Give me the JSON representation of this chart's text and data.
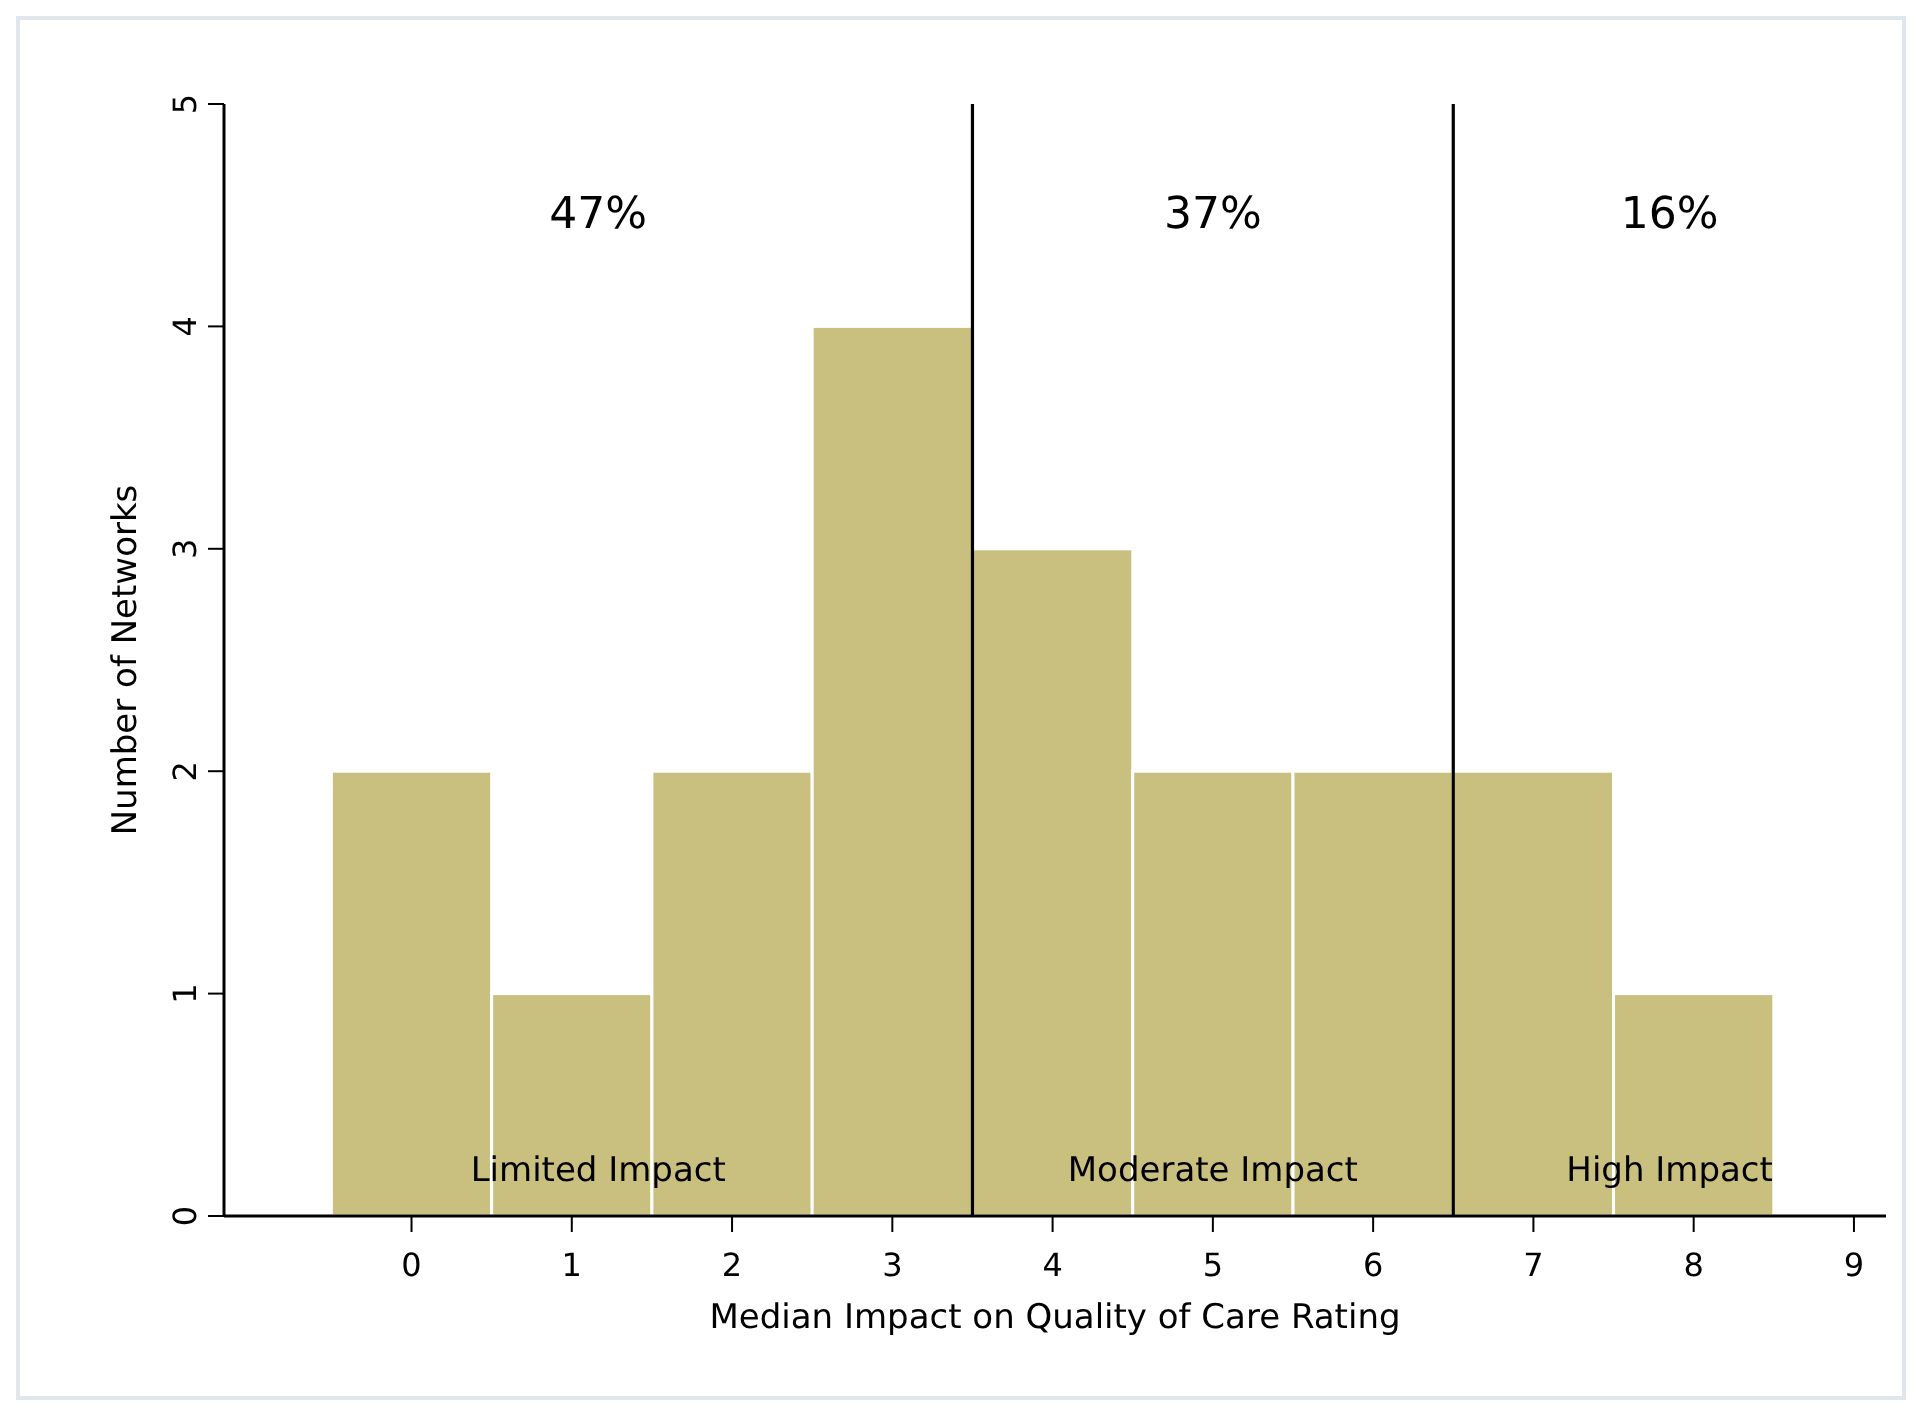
{
  "chart_data": {
    "type": "histogram",
    "xlabel": "Median Impact on Quality of Care Rating",
    "ylabel": "Number of Networks",
    "bins": [
      -0.5,
      0.5,
      1.5,
      2.5,
      3.5,
      4.5,
      5.5,
      6.5,
      7.5,
      8.5
    ],
    "values": [
      2,
      1,
      2,
      4,
      3,
      2,
      2,
      2,
      1
    ],
    "color": "#c9c080",
    "xlim": [
      -1.17,
      9.2
    ],
    "xticks": [
      0,
      1,
      2,
      3,
      4,
      5,
      6,
      7,
      8,
      9
    ],
    "ylim": [
      0,
      5
    ],
    "yticks": [
      0,
      1,
      2,
      3,
      4,
      5
    ],
    "grid": false,
    "ref_lines": [
      {
        "axis": "x",
        "value": 3.5,
        "color": "#000000"
      },
      {
        "axis": "x",
        "value": 6.5,
        "color": "#000000"
      }
    ],
    "annotations": [
      "47%",
      "37%",
      "16%",
      "Limited Impact",
      "Moderate Impact",
      "High Impact"
    ]
  }
}
